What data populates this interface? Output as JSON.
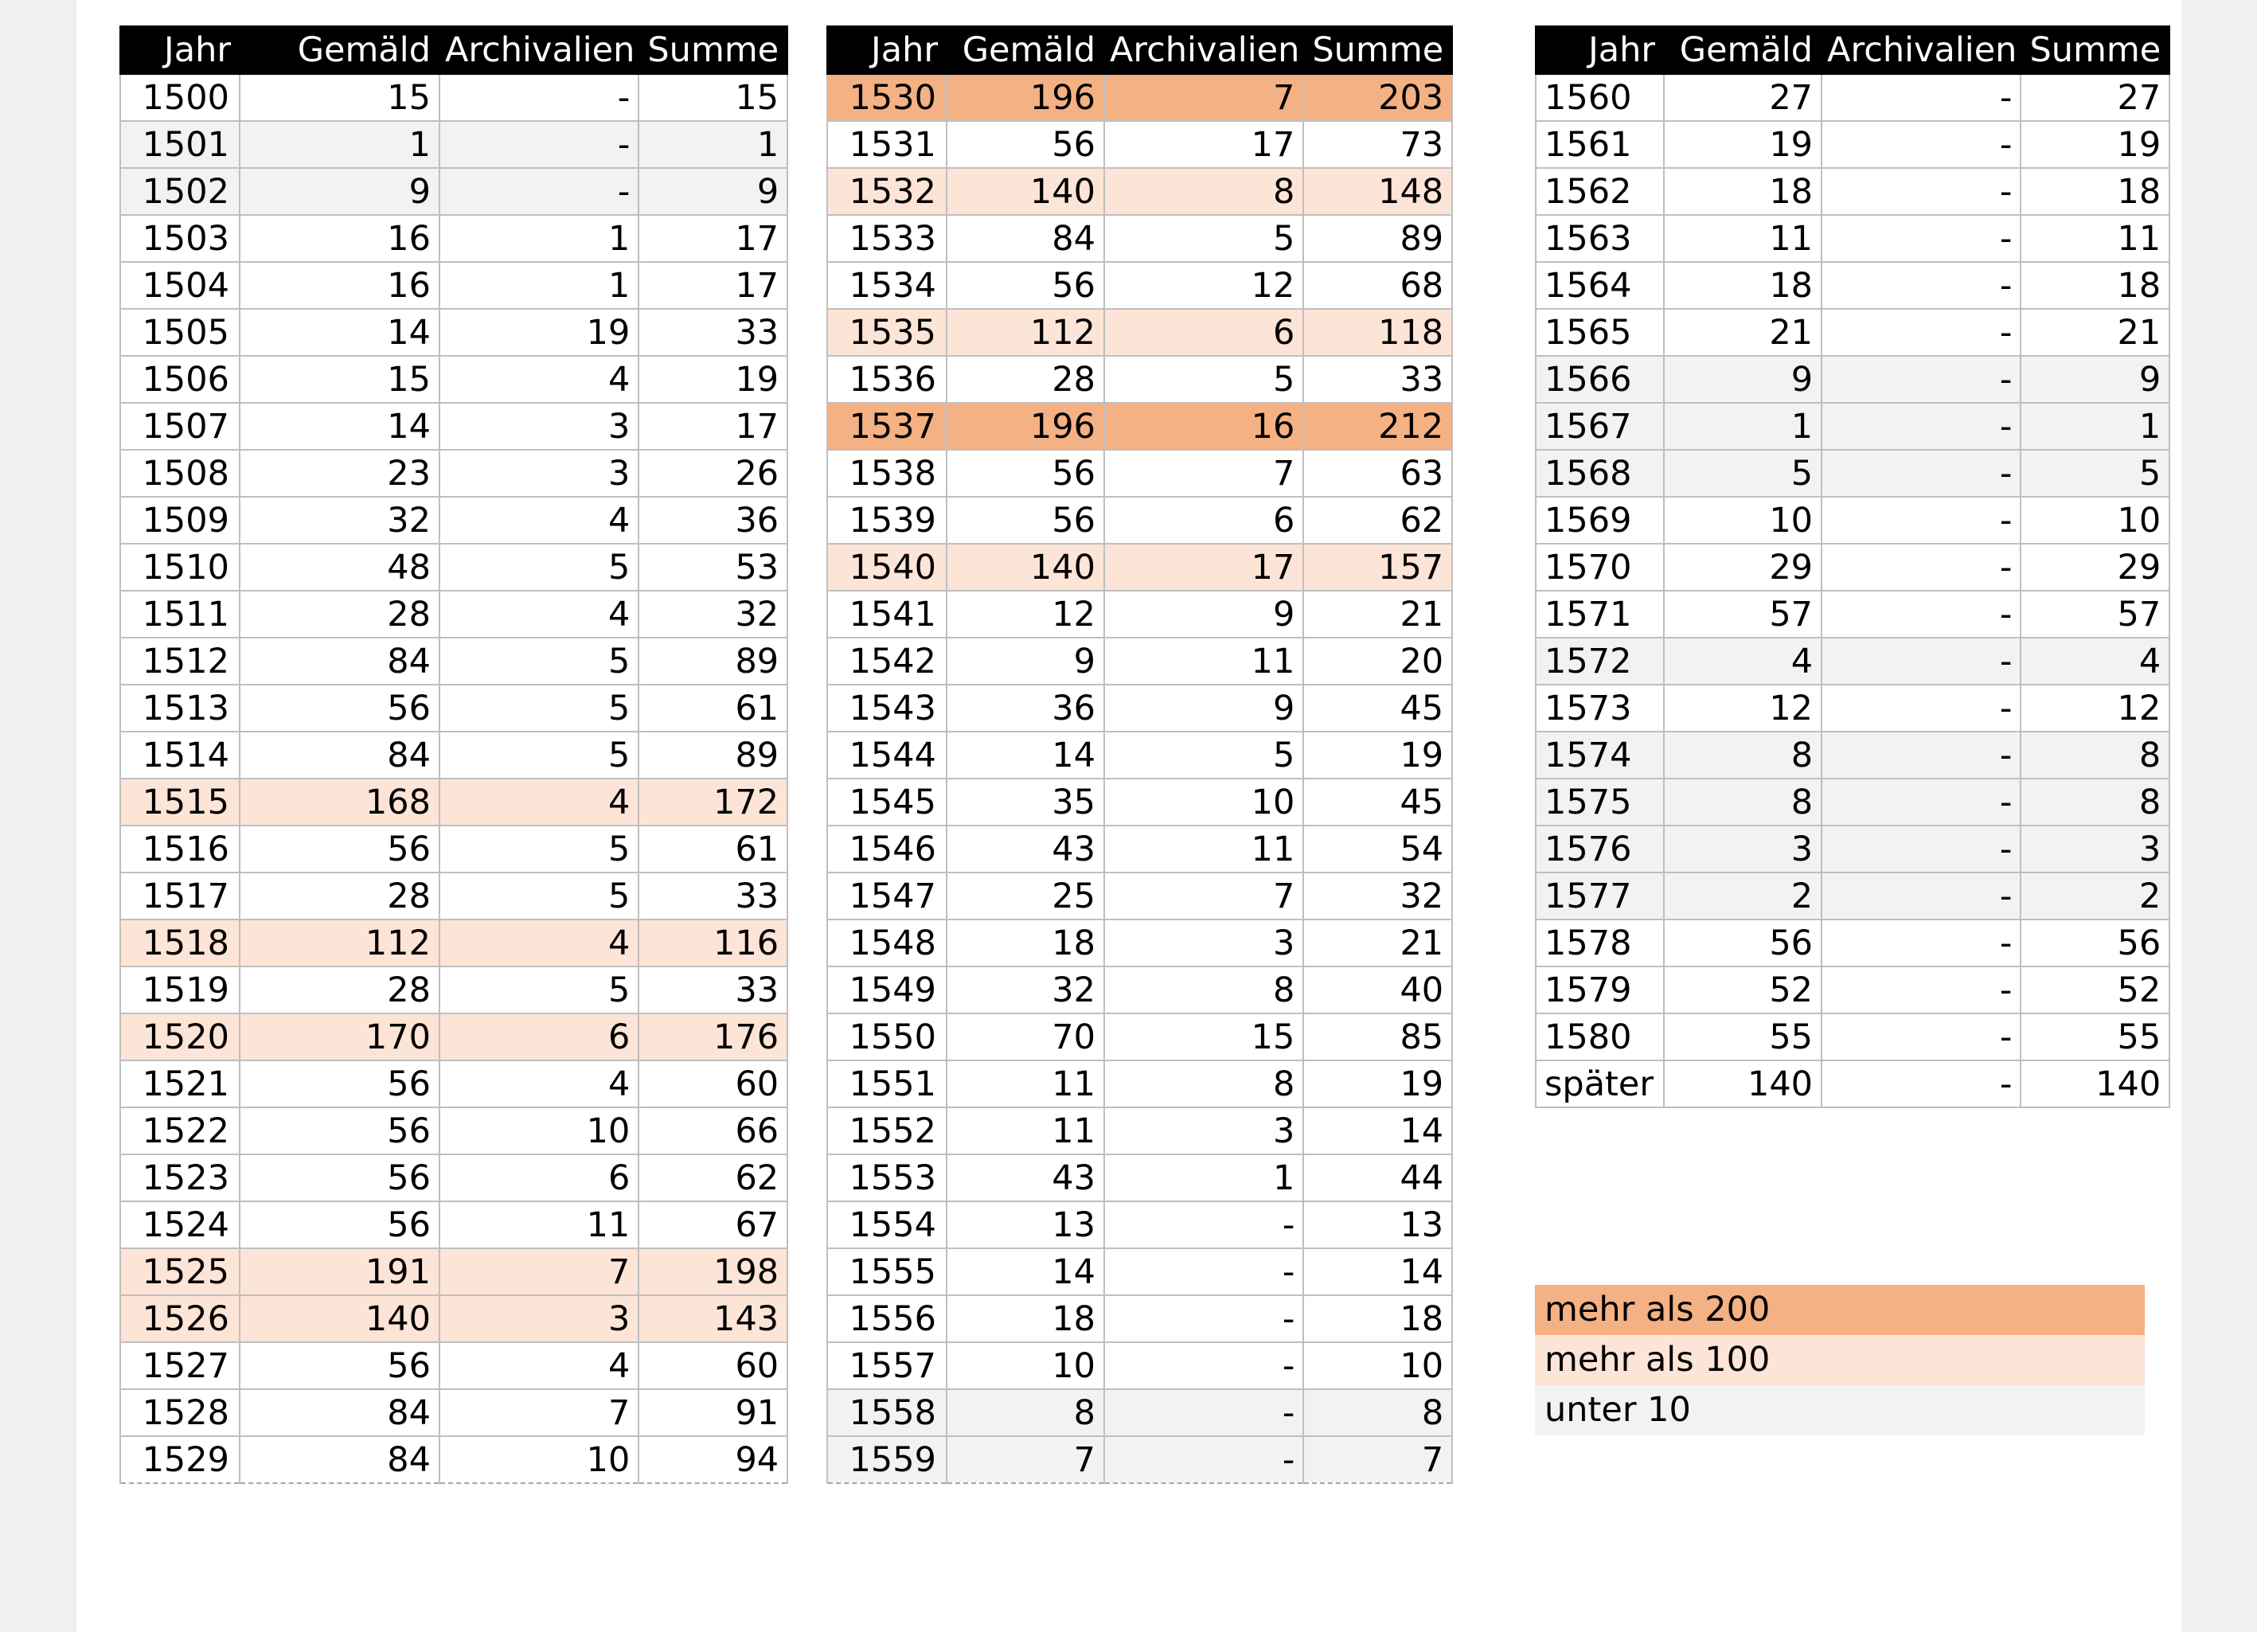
{
  "headers": [
    "Jahr",
    "Gemäld",
    "Archivalien",
    "Summe"
  ],
  "tables": [
    {
      "rows": [
        {
          "jahr": "1500",
          "gemaeld": "15",
          "archivalien": "-",
          "summe": "15",
          "hl": ""
        },
        {
          "jahr": "1501",
          "gemaeld": "1",
          "archivalien": "-",
          "summe": "1",
          "hl": "10"
        },
        {
          "jahr": "1502",
          "gemaeld": "9",
          "archivalien": "-",
          "summe": "9",
          "hl": "10"
        },
        {
          "jahr": "1503",
          "gemaeld": "16",
          "archivalien": "1",
          "summe": "17",
          "hl": ""
        },
        {
          "jahr": "1504",
          "gemaeld": "16",
          "archivalien": "1",
          "summe": "17",
          "hl": ""
        },
        {
          "jahr": "1505",
          "gemaeld": "14",
          "archivalien": "19",
          "summe": "33",
          "hl": ""
        },
        {
          "jahr": "1506",
          "gemaeld": "15",
          "archivalien": "4",
          "summe": "19",
          "hl": ""
        },
        {
          "jahr": "1507",
          "gemaeld": "14",
          "archivalien": "3",
          "summe": "17",
          "hl": ""
        },
        {
          "jahr": "1508",
          "gemaeld": "23",
          "archivalien": "3",
          "summe": "26",
          "hl": ""
        },
        {
          "jahr": "1509",
          "gemaeld": "32",
          "archivalien": "4",
          "summe": "36",
          "hl": ""
        },
        {
          "jahr": "1510",
          "gemaeld": "48",
          "archivalien": "5",
          "summe": "53",
          "hl": ""
        },
        {
          "jahr": "1511",
          "gemaeld": "28",
          "archivalien": "4",
          "summe": "32",
          "hl": ""
        },
        {
          "jahr": "1512",
          "gemaeld": "84",
          "archivalien": "5",
          "summe": "89",
          "hl": ""
        },
        {
          "jahr": "1513",
          "gemaeld": "56",
          "archivalien": "5",
          "summe": "61",
          "hl": ""
        },
        {
          "jahr": "1514",
          "gemaeld": "84",
          "archivalien": "5",
          "summe": "89",
          "hl": ""
        },
        {
          "jahr": "1515",
          "gemaeld": "168",
          "archivalien": "4",
          "summe": "172",
          "hl": "100"
        },
        {
          "jahr": "1516",
          "gemaeld": "56",
          "archivalien": "5",
          "summe": "61",
          "hl": ""
        },
        {
          "jahr": "1517",
          "gemaeld": "28",
          "archivalien": "5",
          "summe": "33",
          "hl": ""
        },
        {
          "jahr": "1518",
          "gemaeld": "112",
          "archivalien": "4",
          "summe": "116",
          "hl": "100"
        },
        {
          "jahr": "1519",
          "gemaeld": "28",
          "archivalien": "5",
          "summe": "33",
          "hl": ""
        },
        {
          "jahr": "1520",
          "gemaeld": "170",
          "archivalien": "6",
          "summe": "176",
          "hl": "100"
        },
        {
          "jahr": "1521",
          "gemaeld": "56",
          "archivalien": "4",
          "summe": "60",
          "hl": ""
        },
        {
          "jahr": "1522",
          "gemaeld": "56",
          "archivalien": "10",
          "summe": "66",
          "hl": ""
        },
        {
          "jahr": "1523",
          "gemaeld": "56",
          "archivalien": "6",
          "summe": "62",
          "hl": ""
        },
        {
          "jahr": "1524",
          "gemaeld": "56",
          "archivalien": "11",
          "summe": "67",
          "hl": ""
        },
        {
          "jahr": "1525",
          "gemaeld": "191",
          "archivalien": "7",
          "summe": "198",
          "hl": "100"
        },
        {
          "jahr": "1526",
          "gemaeld": "140",
          "archivalien": "3",
          "summe": "143",
          "hl": "100"
        },
        {
          "jahr": "1527",
          "gemaeld": "56",
          "archivalien": "4",
          "summe": "60",
          "hl": ""
        },
        {
          "jahr": "1528",
          "gemaeld": "84",
          "archivalien": "7",
          "summe": "91",
          "hl": ""
        },
        {
          "jahr": "1529",
          "gemaeld": "84",
          "archivalien": "10",
          "summe": "94",
          "hl": ""
        }
      ]
    },
    {
      "rows": [
        {
          "jahr": "1530",
          "gemaeld": "196",
          "archivalien": "7",
          "summe": "203",
          "hl": "200"
        },
        {
          "jahr": "1531",
          "gemaeld": "56",
          "archivalien": "17",
          "summe": "73",
          "hl": ""
        },
        {
          "jahr": "1532",
          "gemaeld": "140",
          "archivalien": "8",
          "summe": "148",
          "hl": "100"
        },
        {
          "jahr": "1533",
          "gemaeld": "84",
          "archivalien": "5",
          "summe": "89",
          "hl": ""
        },
        {
          "jahr": "1534",
          "gemaeld": "56",
          "archivalien": "12",
          "summe": "68",
          "hl": ""
        },
        {
          "jahr": "1535",
          "gemaeld": "112",
          "archivalien": "6",
          "summe": "118",
          "hl": "100"
        },
        {
          "jahr": "1536",
          "gemaeld": "28",
          "archivalien": "5",
          "summe": "33",
          "hl": ""
        },
        {
          "jahr": "1537",
          "gemaeld": "196",
          "archivalien": "16",
          "summe": "212",
          "hl": "200"
        },
        {
          "jahr": "1538",
          "gemaeld": "56",
          "archivalien": "7",
          "summe": "63",
          "hl": ""
        },
        {
          "jahr": "1539",
          "gemaeld": "56",
          "archivalien": "6",
          "summe": "62",
          "hl": ""
        },
        {
          "jahr": "1540",
          "gemaeld": "140",
          "archivalien": "17",
          "summe": "157",
          "hl": "100"
        },
        {
          "jahr": "1541",
          "gemaeld": "12",
          "archivalien": "9",
          "summe": "21",
          "hl": ""
        },
        {
          "jahr": "1542",
          "gemaeld": "9",
          "archivalien": "11",
          "summe": "20",
          "hl": ""
        },
        {
          "jahr": "1543",
          "gemaeld": "36",
          "archivalien": "9",
          "summe": "45",
          "hl": ""
        },
        {
          "jahr": "1544",
          "gemaeld": "14",
          "archivalien": "5",
          "summe": "19",
          "hl": ""
        },
        {
          "jahr": "1545",
          "gemaeld": "35",
          "archivalien": "10",
          "summe": "45",
          "hl": ""
        },
        {
          "jahr": "1546",
          "gemaeld": "43",
          "archivalien": "11",
          "summe": "54",
          "hl": ""
        },
        {
          "jahr": "1547",
          "gemaeld": "25",
          "archivalien": "7",
          "summe": "32",
          "hl": ""
        },
        {
          "jahr": "1548",
          "gemaeld": "18",
          "archivalien": "3",
          "summe": "21",
          "hl": ""
        },
        {
          "jahr": "1549",
          "gemaeld": "32",
          "archivalien": "8",
          "summe": "40",
          "hl": ""
        },
        {
          "jahr": "1550",
          "gemaeld": "70",
          "archivalien": "15",
          "summe": "85",
          "hl": ""
        },
        {
          "jahr": "1551",
          "gemaeld": "11",
          "archivalien": "8",
          "summe": "19",
          "hl": ""
        },
        {
          "jahr": "1552",
          "gemaeld": "11",
          "archivalien": "3",
          "summe": "14",
          "hl": ""
        },
        {
          "jahr": "1553",
          "gemaeld": "43",
          "archivalien": "1",
          "summe": "44",
          "hl": ""
        },
        {
          "jahr": "1554",
          "gemaeld": "13",
          "archivalien": "-",
          "summe": "13",
          "hl": ""
        },
        {
          "jahr": "1555",
          "gemaeld": "14",
          "archivalien": "-",
          "summe": "14",
          "hl": ""
        },
        {
          "jahr": "1556",
          "gemaeld": "18",
          "archivalien": "-",
          "summe": "18",
          "hl": ""
        },
        {
          "jahr": "1557",
          "gemaeld": "10",
          "archivalien": "-",
          "summe": "10",
          "hl": ""
        },
        {
          "jahr": "1558",
          "gemaeld": "8",
          "archivalien": "-",
          "summe": "8",
          "hl": "10"
        },
        {
          "jahr": "1559",
          "gemaeld": "7",
          "archivalien": "-",
          "summe": "7",
          "hl": "10"
        }
      ]
    },
    {
      "rows": [
        {
          "jahr": "1560",
          "gemaeld": "27",
          "archivalien": "-",
          "summe": "27",
          "hl": ""
        },
        {
          "jahr": "1561",
          "gemaeld": "19",
          "archivalien": "-",
          "summe": "19",
          "hl": ""
        },
        {
          "jahr": "1562",
          "gemaeld": "18",
          "archivalien": "-",
          "summe": "18",
          "hl": ""
        },
        {
          "jahr": "1563",
          "gemaeld": "11",
          "archivalien": "-",
          "summe": "11",
          "hl": ""
        },
        {
          "jahr": "1564",
          "gemaeld": "18",
          "archivalien": "-",
          "summe": "18",
          "hl": ""
        },
        {
          "jahr": "1565",
          "gemaeld": "21",
          "archivalien": "-",
          "summe": "21",
          "hl": ""
        },
        {
          "jahr": "1566",
          "gemaeld": "9",
          "archivalien": "-",
          "summe": "9",
          "hl": "10"
        },
        {
          "jahr": "1567",
          "gemaeld": "1",
          "archivalien": "-",
          "summe": "1",
          "hl": "10"
        },
        {
          "jahr": "1568",
          "gemaeld": "5",
          "archivalien": "-",
          "summe": "5",
          "hl": "10"
        },
        {
          "jahr": "1569",
          "gemaeld": "10",
          "archivalien": "-",
          "summe": "10",
          "hl": ""
        },
        {
          "jahr": "1570",
          "gemaeld": "29",
          "archivalien": "-",
          "summe": "29",
          "hl": ""
        },
        {
          "jahr": "1571",
          "gemaeld": "57",
          "archivalien": "-",
          "summe": "57",
          "hl": ""
        },
        {
          "jahr": "1572",
          "gemaeld": "4",
          "archivalien": "-",
          "summe": "4",
          "hl": "10"
        },
        {
          "jahr": "1573",
          "gemaeld": "12",
          "archivalien": "-",
          "summe": "12",
          "hl": ""
        },
        {
          "jahr": "1574",
          "gemaeld": "8",
          "archivalien": "-",
          "summe": "8",
          "hl": "10"
        },
        {
          "jahr": "1575",
          "gemaeld": "8",
          "archivalien": "-",
          "summe": "8",
          "hl": "10"
        },
        {
          "jahr": "1576",
          "gemaeld": "3",
          "archivalien": "-",
          "summe": "3",
          "hl": "10"
        },
        {
          "jahr": "1577",
          "gemaeld": "2",
          "archivalien": "-",
          "summe": "2",
          "hl": "10"
        },
        {
          "jahr": "1578",
          "gemaeld": "56",
          "archivalien": "-",
          "summe": "56",
          "hl": ""
        },
        {
          "jahr": "1579",
          "gemaeld": "52",
          "archivalien": "-",
          "summe": "52",
          "hl": ""
        },
        {
          "jahr": "1580",
          "gemaeld": "55",
          "archivalien": "-",
          "summe": "55",
          "hl": ""
        },
        {
          "jahr": "später",
          "gemaeld": "140",
          "archivalien": "-",
          "summe": "140",
          "hl": ""
        }
      ]
    }
  ],
  "legend": [
    {
      "label": "mehr als 200",
      "color": "#f4b183"
    },
    {
      "label": "mehr als 100",
      "color": "#fce4d6"
    },
    {
      "label": "unter 10",
      "color": "#f2f2f2"
    }
  ],
  "colors": {
    "header_bg": "#000000",
    "gt200": "#f4b183",
    "gt100": "#fce4d6",
    "lt10": "#f2f2f2",
    "grid": "#bfbfbf"
  }
}
